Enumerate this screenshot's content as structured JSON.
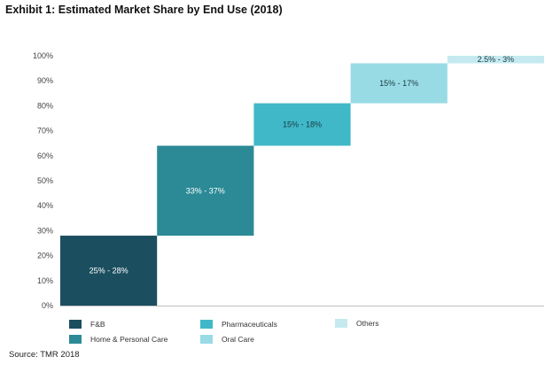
{
  "title": "Exhibit 1: Estimated Market Share by End Use (2018)",
  "source": "Source: TMR 2018",
  "chart_data": {
    "type": "bar",
    "subtype": "waterfall-stacked",
    "title": "Exhibit 1: Estimated Market Share by End Use (2018)",
    "xlabel": "",
    "ylabel": "",
    "ylim": [
      0,
      100
    ],
    "yticks": [
      "0%",
      "10%",
      "20%",
      "30%",
      "40%",
      "50%",
      "60%",
      "70%",
      "80%",
      "90%",
      "100%"
    ],
    "grid": false,
    "legend_position": "bottom",
    "categories": [
      "F&B",
      "Home & Personal Care",
      "Pharmaceuticals",
      "Oral Care",
      "Others"
    ],
    "segments": [
      {
        "name": "F&B",
        "start": 0,
        "end": 28,
        "label": "25% - 28%",
        "color": "#1b4f5f",
        "label_color": "#ffffff"
      },
      {
        "name": "Home & Personal Care",
        "start": 28,
        "end": 64,
        "label": "33% - 37%",
        "color": "#2b8a96",
        "label_color": "#ffffff"
      },
      {
        "name": "Pharmaceuticals",
        "start": 64,
        "end": 81,
        "label": "15% - 18%",
        "color": "#40b8c8",
        "label_color": "#1a3a40"
      },
      {
        "name": "Oral Care",
        "start": 81,
        "end": 97,
        "label": "15% - 17%",
        "color": "#98dbe4",
        "label_color": "#1a3a40"
      },
      {
        "name": "Others",
        "start": 97,
        "end": 100,
        "label": "2.5% - 3%",
        "color": "#c4eaef",
        "label_color": "#1a3a40"
      }
    ]
  },
  "legend": [
    {
      "label": "F&B",
      "color": "#1b4f5f"
    },
    {
      "label": "Pharmaceuticals",
      "color": "#40b8c8"
    },
    {
      "label": "Others",
      "color": "#c4eaef"
    },
    {
      "label": "Home & Personal Care",
      "color": "#2b8a96"
    },
    {
      "label": "Oral Care",
      "color": "#98dbe4"
    }
  ]
}
